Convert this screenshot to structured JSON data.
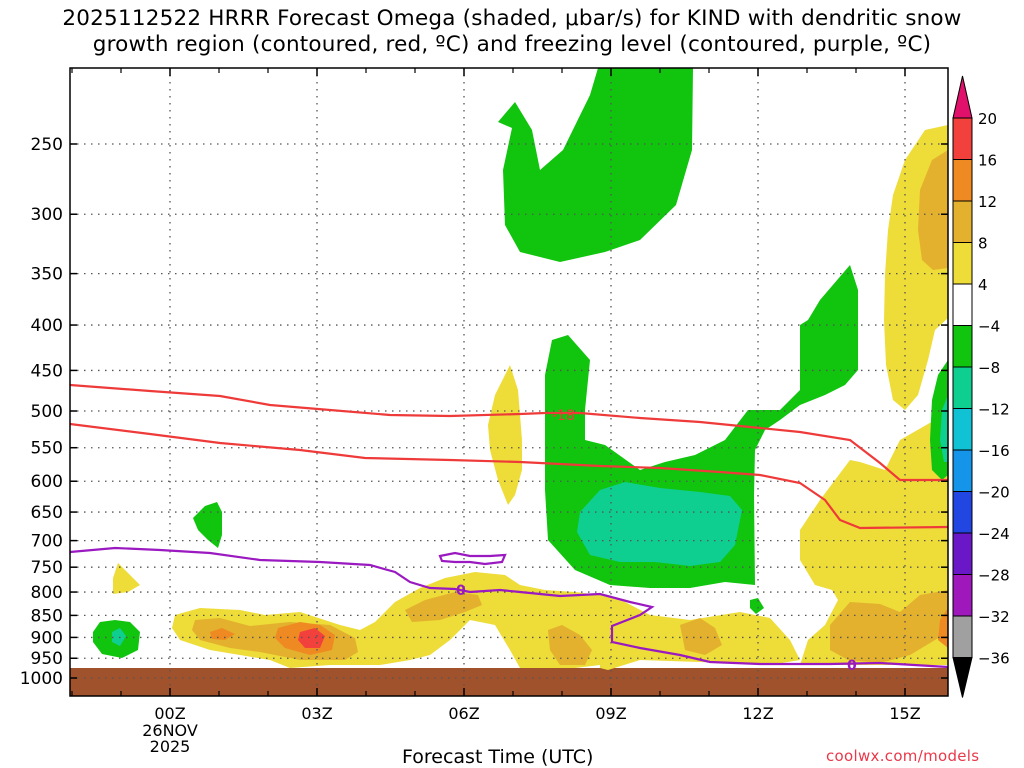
{
  "title": {
    "line1": "2025112522 HRRR Forecast Omega (shaded, μbar/s) for KIND with dendritic snow",
    "line2": "growth region (contoured, red, ºC) and freezing level (contoured, purple, ºC)"
  },
  "credit": "coolwx.com/models",
  "chart_data": {
    "type": "heatmap",
    "title": "2025112522 HRRR Forecast Omega (shaded, μbar/s) for KIND with dendritic snow growth region (contoured, red, ºC) and freezing level (contoured, purple, ºC)",
    "xlabel": "Forecast Time (UTC)",
    "ylabel": "",
    "x_ticks": [
      "00Z",
      "03Z",
      "06Z",
      "09Z",
      "12Z",
      "15Z"
    ],
    "x_date_label": [
      "26NOV",
      "2025"
    ],
    "y_ticks": [
      250,
      300,
      350,
      400,
      450,
      500,
      550,
      600,
      650,
      700,
      750,
      800,
      850,
      900,
      950,
      1000
    ],
    "y_scale": "log-pressure (reversed)",
    "grid": true,
    "colorbar": {
      "levels": [
        20,
        16,
        12,
        8,
        4,
        -4,
        -8,
        -12,
        -16,
        -20,
        -24,
        -28,
        -32,
        -36
      ],
      "colors": [
        "#e0106b",
        "#f2403c",
        "#ef8a22",
        "#e3b12e",
        "#eedc38",
        "#ffffff",
        "#11c40e",
        "#0fcf90",
        "#10c2d4",
        "#1595ea",
        "#2146e2",
        "#6a17c8",
        "#9e18bc",
        "#a0a0a0",
        "#000000"
      ]
    },
    "contours": [
      {
        "name": "dendritic snow growth region",
        "color": "#ef3a3a",
        "labels": [
          "-18"
        ]
      },
      {
        "name": "freezing level",
        "color": "#9a19c0",
        "labels": [
          "0",
          "0"
        ]
      }
    ],
    "annotations": [
      "-18",
      "0",
      "0"
    ],
    "ground_color": "#a0522d"
  }
}
